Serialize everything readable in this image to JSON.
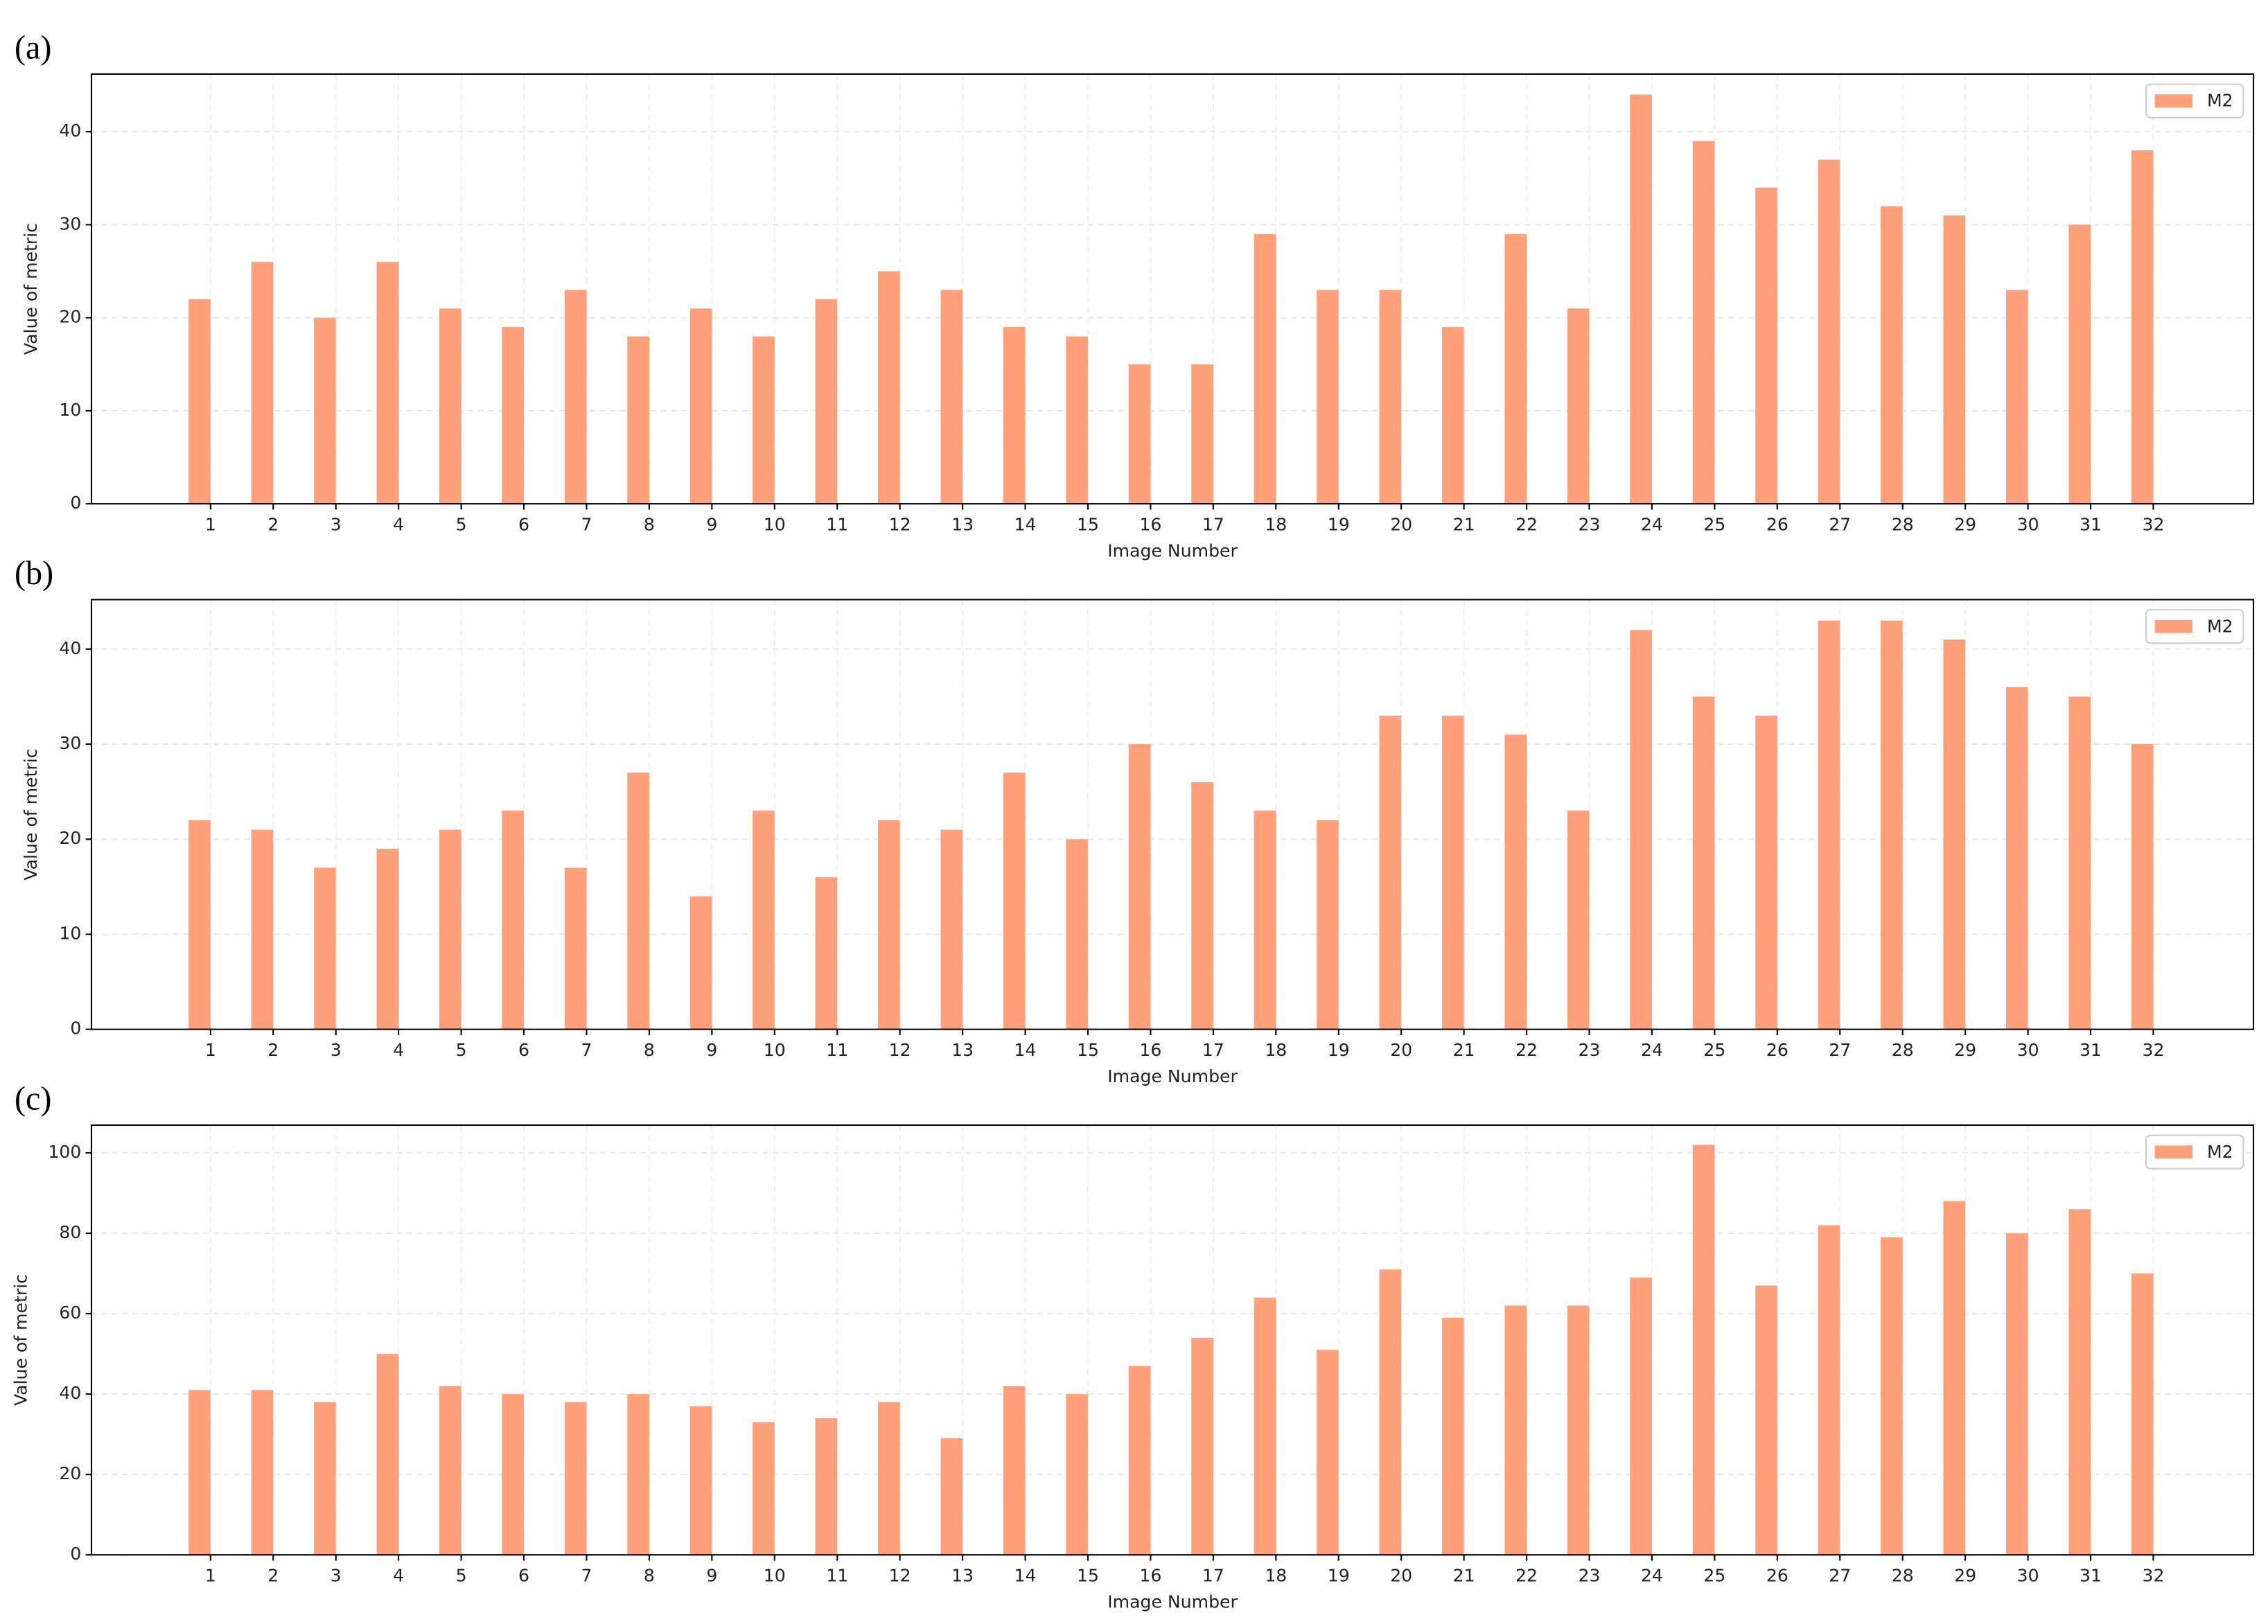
{
  "chart_data": [
    {
      "type": "bar",
      "title": "(a)",
      "x_label": "Image Number",
      "y_label": "Value of metric",
      "categories": [
        "1",
        "2",
        "3",
        "4",
        "5",
        "6",
        "7",
        "8",
        "9",
        "10",
        "11",
        "12",
        "13",
        "14",
        "15",
        "16",
        "17",
        "18",
        "19",
        "20",
        "21",
        "22",
        "23",
        "24",
        "25",
        "26",
        "27",
        "28",
        "29",
        "30",
        "31",
        "32"
      ],
      "series": [
        {
          "name": "M2",
          "color": "#ffa07a",
          "values": [
            22,
            26,
            20,
            26,
            21,
            19,
            23,
            18,
            21,
            18,
            22,
            25,
            23,
            19,
            18,
            15,
            15,
            29,
            23,
            23,
            19,
            29,
            21,
            44,
            39,
            34,
            37,
            32,
            31,
            23,
            30,
            38
          ]
        }
      ],
      "ylim": [
        0,
        46.2
      ],
      "yticks": [
        0,
        10,
        20,
        30,
        40
      ],
      "grid": true,
      "legend": "upper right"
    },
    {
      "type": "bar",
      "title": "(b)",
      "x_label": "Image Number",
      "y_label": "Value of metric",
      "categories": [
        "1",
        "2",
        "3",
        "4",
        "5",
        "6",
        "7",
        "8",
        "9",
        "10",
        "11",
        "12",
        "13",
        "14",
        "15",
        "16",
        "17",
        "18",
        "19",
        "20",
        "21",
        "22",
        "23",
        "24",
        "25",
        "26",
        "27",
        "28",
        "29",
        "30",
        "31",
        "32"
      ],
      "series": [
        {
          "name": "M2",
          "color": "#ffa07a",
          "values": [
            22,
            21,
            17,
            19,
            21,
            23,
            17,
            27,
            14,
            23,
            16,
            22,
            21,
            27,
            20,
            30,
            26,
            23,
            22,
            33,
            33,
            31,
            23,
            42,
            35,
            33,
            43,
            43,
            41,
            36,
            35,
            30
          ]
        }
      ],
      "ylim": [
        0,
        45.2
      ],
      "yticks": [
        0,
        10,
        20,
        30,
        40
      ],
      "grid": true,
      "legend": "upper right"
    },
    {
      "type": "bar",
      "title": "(c)",
      "x_label": "Image Number",
      "y_label": "Value of metric",
      "categories": [
        "1",
        "2",
        "3",
        "4",
        "5",
        "6",
        "7",
        "8",
        "9",
        "10",
        "11",
        "12",
        "13",
        "14",
        "15",
        "16",
        "17",
        "18",
        "19",
        "20",
        "21",
        "22",
        "23",
        "24",
        "25",
        "26",
        "27",
        "28",
        "29",
        "30",
        "31",
        "32"
      ],
      "series": [
        {
          "name": "M2",
          "color": "#ffa07a",
          "values": [
            41,
            41,
            38,
            50,
            42,
            40,
            38,
            40,
            37,
            33,
            34,
            38,
            29,
            42,
            40,
            47,
            54,
            64,
            51,
            71,
            59,
            62,
            62,
            69,
            102,
            67,
            82,
            79,
            88,
            80,
            86,
            70
          ]
        }
      ],
      "ylim": [
        0,
        106.9
      ],
      "yticks": [
        0,
        20,
        40,
        60,
        80,
        100
      ],
      "grid": true,
      "legend": "upper right"
    }
  ]
}
